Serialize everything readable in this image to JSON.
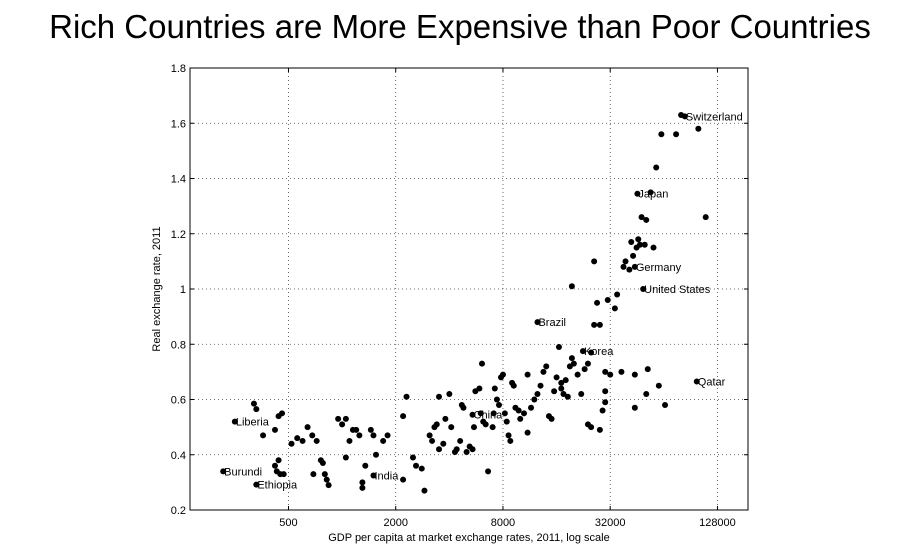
{
  "slide": {
    "title": "Rich Countries are More Expensive than Poor Countries"
  },
  "chart_data": {
    "type": "scatter",
    "title": "Rich Countries are More Expensive than Poor Countries",
    "xlabel": "GDP per capita at market exchange rates, 2011, log scale",
    "ylabel": "Real exchange rate, 2011",
    "xscale": "log2",
    "xlim": [
      140,
      190000
    ],
    "ylim": [
      0.2,
      1.8
    ],
    "xticks": [
      500,
      2000,
      8000,
      32000,
      128000
    ],
    "xtick_labels": [
      "500",
      "2000",
      "8000",
      "32000",
      "128000"
    ],
    "yticks": [
      0.2,
      0.4,
      0.6,
      0.8,
      1.0,
      1.2,
      1.4,
      1.6,
      1.8
    ],
    "ytick_labels": [
      "0.2",
      "0.4",
      "0.6",
      "0.8",
      "1",
      "1.2",
      "1.4",
      "1.6",
      "1.8"
    ],
    "grid": true,
    "labeled_points": [
      {
        "name": "Switzerland",
        "x": 84000,
        "y": 1.625
      },
      {
        "name": "Japan",
        "x": 45500,
        "y": 1.345
      },
      {
        "name": "Germany",
        "x": 44000,
        "y": 1.08
      },
      {
        "name": "United States",
        "x": 49000,
        "y": 1.0
      },
      {
        "name": "Brazil",
        "x": 12500,
        "y": 0.88
      },
      {
        "name": "Korea",
        "x": 22500,
        "y": 0.775
      },
      {
        "name": "Qatar",
        "x": 98000,
        "y": 0.665
      },
      {
        "name": "China",
        "x": 5400,
        "y": 0.545
      },
      {
        "name": "Liberia",
        "x": 250,
        "y": 0.52
      },
      {
        "name": "India",
        "x": 1500,
        "y": 0.325
      },
      {
        "name": "Burundi",
        "x": 215,
        "y": 0.34
      },
      {
        "name": "Ethiopia",
        "x": 330,
        "y": 0.292
      }
    ],
    "points": [
      [
        320,
        0.585
      ],
      [
        330,
        0.565
      ],
      [
        360,
        0.47
      ],
      [
        420,
        0.49
      ],
      [
        440,
        0.54
      ],
      [
        460,
        0.55
      ],
      [
        470,
        0.33
      ],
      [
        440,
        0.38
      ],
      [
        420,
        0.36
      ],
      [
        430,
        0.34
      ],
      [
        450,
        0.33
      ],
      [
        520,
        0.44
      ],
      [
        560,
        0.46
      ],
      [
        600,
        0.45
      ],
      [
        640,
        0.5
      ],
      [
        680,
        0.47
      ],
      [
        720,
        0.45
      ],
      [
        690,
        0.33
      ],
      [
        760,
        0.38
      ],
      [
        780,
        0.37
      ],
      [
        820,
        0.31
      ],
      [
        800,
        0.33
      ],
      [
        840,
        0.29
      ],
      [
        950,
        0.53
      ],
      [
        1000,
        0.51
      ],
      [
        1050,
        0.53
      ],
      [
        1100,
        0.45
      ],
      [
        1050,
        0.39
      ],
      [
        1150,
        0.49
      ],
      [
        1200,
        0.49
      ],
      [
        1250,
        0.47
      ],
      [
        1300,
        0.28
      ],
      [
        1300,
        0.3
      ],
      [
        1350,
        0.36
      ],
      [
        1450,
        0.49
      ],
      [
        1500,
        0.47
      ],
      [
        1550,
        0.4
      ],
      [
        1700,
        0.45
      ],
      [
        1800,
        0.47
      ],
      [
        2200,
        0.31
      ],
      [
        2300,
        0.61
      ],
      [
        2200,
        0.54
      ],
      [
        2500,
        0.39
      ],
      [
        2600,
        0.36
      ],
      [
        2800,
        0.35
      ],
      [
        2900,
        0.27
      ],
      [
        3100,
        0.47
      ],
      [
        3200,
        0.45
      ],
      [
        3300,
        0.5
      ],
      [
        3400,
        0.51
      ],
      [
        3500,
        0.42
      ],
      [
        3700,
        0.44
      ],
      [
        3500,
        0.61
      ],
      [
        3800,
        0.53
      ],
      [
        4000,
        0.62
      ],
      [
        4100,
        0.5
      ],
      [
        4300,
        0.41
      ],
      [
        4400,
        0.42
      ],
      [
        4600,
        0.45
      ],
      [
        4700,
        0.58
      ],
      [
        4800,
        0.57
      ],
      [
        5000,
        0.41
      ],
      [
        5200,
        0.43
      ],
      [
        5400,
        0.42
      ],
      [
        5500,
        0.5
      ],
      [
        5600,
        0.63
      ],
      [
        5900,
        0.64
      ],
      [
        6100,
        0.73
      ],
      [
        6000,
        0.55
      ],
      [
        6200,
        0.52
      ],
      [
        6400,
        0.51
      ],
      [
        6600,
        0.34
      ],
      [
        7000,
        0.5
      ],
      [
        7100,
        0.55
      ],
      [
        7200,
        0.64
      ],
      [
        7400,
        0.6
      ],
      [
        7600,
        0.58
      ],
      [
        7800,
        0.68
      ],
      [
        8000,
        0.69
      ],
      [
        8200,
        0.55
      ],
      [
        8400,
        0.52
      ],
      [
        8600,
        0.47
      ],
      [
        8800,
        0.45
      ],
      [
        9000,
        0.66
      ],
      [
        9200,
        0.65
      ],
      [
        9400,
        0.57
      ],
      [
        9800,
        0.56
      ],
      [
        10000,
        0.53
      ],
      [
        10500,
        0.55
      ],
      [
        11000,
        0.69
      ],
      [
        11000,
        0.48
      ],
      [
        11500,
        0.57
      ],
      [
        12000,
        0.6
      ],
      [
        12500,
        0.62
      ],
      [
        13000,
        0.65
      ],
      [
        13500,
        0.7
      ],
      [
        14000,
        0.72
      ],
      [
        14500,
        0.54
      ],
      [
        15000,
        0.53
      ],
      [
        15500,
        0.63
      ],
      [
        16000,
        0.68
      ],
      [
        16500,
        0.79
      ],
      [
        17000,
        0.66
      ],
      [
        17000,
        0.64
      ],
      [
        17500,
        0.62
      ],
      [
        18000,
        0.67
      ],
      [
        18500,
        0.61
      ],
      [
        19000,
        0.72
      ],
      [
        19500,
        0.75
      ],
      [
        20000,
        0.73
      ],
      [
        21000,
        0.69
      ],
      [
        22000,
        0.62
      ],
      [
        23000,
        0.71
      ],
      [
        24000,
        0.73
      ],
      [
        25000,
        0.77
      ],
      [
        26000,
        0.87
      ],
      [
        27000,
        0.95
      ],
      [
        24000,
        0.51
      ],
      [
        25000,
        0.5
      ],
      [
        28000,
        0.87
      ],
      [
        28000,
        0.49
      ],
      [
        29000,
        0.56
      ],
      [
        30000,
        0.59
      ],
      [
        30000,
        0.63
      ],
      [
        30000,
        0.7
      ],
      [
        31000,
        0.96
      ],
      [
        32000,
        0.69
      ],
      [
        34000,
        0.93
      ],
      [
        35000,
        0.98
      ],
      [
        37000,
        0.7
      ],
      [
        38000,
        1.08
      ],
      [
        39000,
        1.1
      ],
      [
        42000,
        1.17
      ],
      [
        41000,
        1.07
      ],
      [
        43000,
        1.12
      ],
      [
        44000,
        0.69
      ],
      [
        44000,
        0.57
      ],
      [
        45000,
        1.15
      ],
      [
        46000,
        1.18
      ],
      [
        47000,
        1.16
      ],
      [
        48000,
        1.26
      ],
      [
        50000,
        1.16
      ],
      [
        51000,
        1.25
      ],
      [
        51000,
        0.62
      ],
      [
        52000,
        0.71
      ],
      [
        54000,
        1.35
      ],
      [
        56000,
        1.15
      ],
      [
        58000,
        1.44
      ],
      [
        62000,
        1.56
      ],
      [
        60000,
        0.65
      ],
      [
        65000,
        0.58
      ],
      [
        75000,
        1.56
      ],
      [
        80000,
        1.63
      ],
      [
        100000,
        1.58
      ],
      [
        110000,
        1.26
      ],
      [
        26000,
        1.1
      ],
      [
        19500,
        1.01
      ]
    ]
  }
}
